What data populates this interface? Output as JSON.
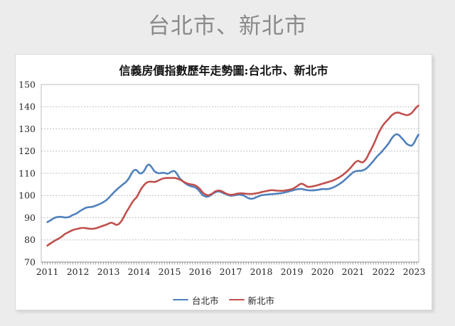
{
  "page": {
    "title": "台北市、新北市",
    "background_color": "#ececec",
    "title_color": "#8a8a8a"
  },
  "chart": {
    "title": "信義房價指數歷年走勢圖:台北市、新北市"
  },
  "chart_data": {
    "type": "line",
    "title": "信義房價指數歷年走勢圖:台北市、新北市",
    "xlabel": "",
    "ylabel": "",
    "x_tick_labels": [
      2011,
      2012,
      2013,
      2014,
      2015,
      2016,
      2017,
      2018,
      2019,
      2020,
      2021,
      2022,
      2023
    ],
    "y_ticks": [
      70,
      80,
      90,
      100,
      110,
      120,
      130,
      140,
      150
    ],
    "ylim": [
      70,
      150
    ],
    "x_range": [
      2010.8,
      2023.15
    ],
    "grid": "horizontal-dashed",
    "minor_x_ticks": "monthly",
    "legend_position": "bottom-center",
    "gridline_color": "#bfbfbf",
    "axis_color": "#8c8c8c",
    "series": [
      {
        "name": "台北市",
        "color": "#4F81BD",
        "points": [
          [
            2011.0,
            88.0
          ],
          [
            2011.08,
            88.6
          ],
          [
            2011.17,
            89.4
          ],
          [
            2011.25,
            90.0
          ],
          [
            2011.33,
            90.3
          ],
          [
            2011.42,
            90.4
          ],
          [
            2011.5,
            90.3
          ],
          [
            2011.58,
            90.1
          ],
          [
            2011.67,
            90.2
          ],
          [
            2011.75,
            90.6
          ],
          [
            2011.83,
            91.2
          ],
          [
            2011.92,
            91.7
          ],
          [
            2012.0,
            92.3
          ],
          [
            2012.08,
            93.1
          ],
          [
            2012.17,
            93.8
          ],
          [
            2012.25,
            94.4
          ],
          [
            2012.33,
            94.7
          ],
          [
            2012.42,
            94.8
          ],
          [
            2012.5,
            95.0
          ],
          [
            2012.58,
            95.4
          ],
          [
            2012.67,
            95.9
          ],
          [
            2012.75,
            96.4
          ],
          [
            2012.83,
            97.0
          ],
          [
            2012.92,
            97.8
          ],
          [
            2013.0,
            98.8
          ],
          [
            2013.08,
            100.0
          ],
          [
            2013.17,
            101.3
          ],
          [
            2013.25,
            102.4
          ],
          [
            2013.33,
            103.4
          ],
          [
            2013.42,
            104.4
          ],
          [
            2013.5,
            105.3
          ],
          [
            2013.58,
            106.2
          ],
          [
            2013.67,
            107.8
          ],
          [
            2013.75,
            109.8
          ],
          [
            2013.83,
            111.3
          ],
          [
            2013.92,
            111.4
          ],
          [
            2014.0,
            110.2
          ],
          [
            2014.08,
            110.0
          ],
          [
            2014.17,
            111.2
          ],
          [
            2014.25,
            113.2
          ],
          [
            2014.33,
            113.9
          ],
          [
            2014.42,
            112.6
          ],
          [
            2014.5,
            111.0
          ],
          [
            2014.58,
            110.3
          ],
          [
            2014.67,
            110.0
          ],
          [
            2014.75,
            110.2
          ],
          [
            2014.83,
            110.2
          ],
          [
            2014.92,
            109.8
          ],
          [
            2015.0,
            110.2
          ],
          [
            2015.08,
            110.9
          ],
          [
            2015.17,
            110.9
          ],
          [
            2015.25,
            109.5
          ],
          [
            2015.33,
            107.8
          ],
          [
            2015.42,
            106.6
          ],
          [
            2015.5,
            105.6
          ],
          [
            2015.58,
            104.9
          ],
          [
            2015.67,
            104.3
          ],
          [
            2015.75,
            104.0
          ],
          [
            2015.83,
            103.7
          ],
          [
            2015.92,
            102.8
          ],
          [
            2016.0,
            101.5
          ],
          [
            2016.08,
            100.2
          ],
          [
            2016.17,
            99.6
          ],
          [
            2016.25,
            99.5
          ],
          [
            2016.33,
            100.0
          ],
          [
            2016.42,
            100.9
          ],
          [
            2016.5,
            101.5
          ],
          [
            2016.58,
            101.8
          ],
          [
            2016.67,
            101.6
          ],
          [
            2016.75,
            101.1
          ],
          [
            2016.83,
            100.7
          ],
          [
            2016.92,
            100.2
          ],
          [
            2017.0,
            99.9
          ],
          [
            2017.08,
            100.0
          ],
          [
            2017.17,
            100.2
          ],
          [
            2017.25,
            100.4
          ],
          [
            2017.33,
            100.3
          ],
          [
            2017.42,
            100.0
          ],
          [
            2017.5,
            99.4
          ],
          [
            2017.58,
            98.8
          ],
          [
            2017.67,
            98.5
          ],
          [
            2017.75,
            98.7
          ],
          [
            2017.83,
            99.2
          ],
          [
            2017.92,
            99.7
          ],
          [
            2018.0,
            100.1
          ],
          [
            2018.17,
            100.4
          ],
          [
            2018.33,
            100.6
          ],
          [
            2018.5,
            100.8
          ],
          [
            2018.67,
            101.1
          ],
          [
            2018.83,
            101.6
          ],
          [
            2019.0,
            102.2
          ],
          [
            2019.17,
            102.8
          ],
          [
            2019.33,
            102.9
          ],
          [
            2019.5,
            102.4
          ],
          [
            2019.67,
            102.3
          ],
          [
            2019.83,
            102.5
          ],
          [
            2020.0,
            102.9
          ],
          [
            2020.17,
            102.9
          ],
          [
            2020.33,
            103.5
          ],
          [
            2020.5,
            104.7
          ],
          [
            2020.67,
            106.3
          ],
          [
            2020.83,
            108.3
          ],
          [
            2020.92,
            109.4
          ],
          [
            2021.0,
            110.4
          ],
          [
            2021.08,
            110.9
          ],
          [
            2021.17,
            111.1
          ],
          [
            2021.25,
            111.1
          ],
          [
            2021.33,
            111.4
          ],
          [
            2021.42,
            112.0
          ],
          [
            2021.5,
            113.0
          ],
          [
            2021.58,
            114.2
          ],
          [
            2021.67,
            115.6
          ],
          [
            2021.75,
            117.0
          ],
          [
            2021.83,
            118.2
          ],
          [
            2021.92,
            119.4
          ],
          [
            2022.0,
            120.7
          ],
          [
            2022.08,
            122.0
          ],
          [
            2022.17,
            123.6
          ],
          [
            2022.25,
            125.4
          ],
          [
            2022.33,
            126.8
          ],
          [
            2022.42,
            127.6
          ],
          [
            2022.5,
            127.2
          ],
          [
            2022.58,
            126.1
          ],
          [
            2022.67,
            124.7
          ],
          [
            2022.75,
            123.4
          ],
          [
            2022.83,
            122.7
          ],
          [
            2022.92,
            122.5
          ],
          [
            2023.0,
            123.8
          ],
          [
            2023.08,
            126.0
          ],
          [
            2023.14,
            127.4
          ]
        ]
      },
      {
        "name": "新北市",
        "color": "#C0504D",
        "points": [
          [
            2011.0,
            77.4
          ],
          [
            2011.08,
            78.2
          ],
          [
            2011.17,
            79.0
          ],
          [
            2011.25,
            79.7
          ],
          [
            2011.33,
            80.3
          ],
          [
            2011.42,
            81.0
          ],
          [
            2011.5,
            81.8
          ],
          [
            2011.58,
            82.7
          ],
          [
            2011.67,
            83.3
          ],
          [
            2011.75,
            83.9
          ],
          [
            2011.83,
            84.4
          ],
          [
            2011.92,
            84.8
          ],
          [
            2012.0,
            85.0
          ],
          [
            2012.08,
            85.3
          ],
          [
            2012.17,
            85.4
          ],
          [
            2012.25,
            85.3
          ],
          [
            2012.33,
            85.1
          ],
          [
            2012.42,
            85.0
          ],
          [
            2012.5,
            85.0
          ],
          [
            2012.58,
            85.2
          ],
          [
            2012.67,
            85.6
          ],
          [
            2012.75,
            86.0
          ],
          [
            2012.83,
            86.4
          ],
          [
            2012.92,
            86.8
          ],
          [
            2013.0,
            87.3
          ],
          [
            2013.08,
            87.7
          ],
          [
            2013.17,
            87.4
          ],
          [
            2013.25,
            86.8
          ],
          [
            2013.33,
            87.1
          ],
          [
            2013.42,
            88.4
          ],
          [
            2013.5,
            90.3
          ],
          [
            2013.58,
            92.4
          ],
          [
            2013.67,
            94.4
          ],
          [
            2013.75,
            96.3
          ],
          [
            2013.83,
            97.9
          ],
          [
            2013.92,
            99.2
          ],
          [
            2014.0,
            101.2
          ],
          [
            2014.08,
            103.2
          ],
          [
            2014.17,
            104.8
          ],
          [
            2014.25,
            105.8
          ],
          [
            2014.33,
            106.2
          ],
          [
            2014.42,
            106.2
          ],
          [
            2014.5,
            106.1
          ],
          [
            2014.58,
            106.4
          ],
          [
            2014.67,
            107.0
          ],
          [
            2014.75,
            107.5
          ],
          [
            2014.83,
            107.8
          ],
          [
            2014.92,
            107.9
          ],
          [
            2015.0,
            107.9
          ],
          [
            2015.08,
            107.9
          ],
          [
            2015.17,
            107.9
          ],
          [
            2015.25,
            107.6
          ],
          [
            2015.33,
            107.2
          ],
          [
            2015.42,
            106.5
          ],
          [
            2015.5,
            105.9
          ],
          [
            2015.58,
            105.4
          ],
          [
            2015.67,
            105.1
          ],
          [
            2015.75,
            104.9
          ],
          [
            2015.83,
            104.6
          ],
          [
            2015.92,
            103.8
          ],
          [
            2016.0,
            102.8
          ],
          [
            2016.08,
            101.4
          ],
          [
            2016.17,
            100.5
          ],
          [
            2016.25,
            100.1
          ],
          [
            2016.33,
            100.4
          ],
          [
            2016.42,
            101.1
          ],
          [
            2016.5,
            101.9
          ],
          [
            2016.58,
            102.2
          ],
          [
            2016.67,
            102.1
          ],
          [
            2016.75,
            101.6
          ],
          [
            2016.83,
            101.0
          ],
          [
            2016.92,
            100.5
          ],
          [
            2017.0,
            100.3
          ],
          [
            2017.08,
            100.4
          ],
          [
            2017.17,
            100.7
          ],
          [
            2017.25,
            100.9
          ],
          [
            2017.33,
            101.0
          ],
          [
            2017.42,
            100.9
          ],
          [
            2017.5,
            100.8
          ],
          [
            2017.58,
            100.7
          ],
          [
            2017.67,
            100.7
          ],
          [
            2017.75,
            100.8
          ],
          [
            2017.83,
            101.0
          ],
          [
            2017.92,
            101.2
          ],
          [
            2018.0,
            101.5
          ],
          [
            2018.17,
            102.0
          ],
          [
            2018.33,
            102.4
          ],
          [
            2018.5,
            102.2
          ],
          [
            2018.67,
            102.1
          ],
          [
            2018.83,
            102.4
          ],
          [
            2019.0,
            102.9
          ],
          [
            2019.08,
            103.4
          ],
          [
            2019.17,
            104.2
          ],
          [
            2019.25,
            105.0
          ],
          [
            2019.33,
            105.3
          ],
          [
            2019.42,
            104.7
          ],
          [
            2019.5,
            104.0
          ],
          [
            2019.58,
            103.9
          ],
          [
            2019.67,
            104.1
          ],
          [
            2019.83,
            104.6
          ],
          [
            2020.0,
            105.3
          ],
          [
            2020.17,
            106.0
          ],
          [
            2020.33,
            106.7
          ],
          [
            2020.5,
            107.8
          ],
          [
            2020.67,
            109.3
          ],
          [
            2020.83,
            111.2
          ],
          [
            2020.92,
            112.5
          ],
          [
            2021.0,
            113.8
          ],
          [
            2021.08,
            115.0
          ],
          [
            2021.17,
            115.6
          ],
          [
            2021.25,
            115.1
          ],
          [
            2021.33,
            115.0
          ],
          [
            2021.42,
            116.3
          ],
          [
            2021.5,
            118.3
          ],
          [
            2021.58,
            120.5
          ],
          [
            2021.67,
            122.9
          ],
          [
            2021.75,
            125.4
          ],
          [
            2021.83,
            128.0
          ],
          [
            2021.92,
            130.3
          ],
          [
            2022.0,
            132.0
          ],
          [
            2022.08,
            133.3
          ],
          [
            2022.17,
            134.6
          ],
          [
            2022.25,
            135.9
          ],
          [
            2022.33,
            136.8
          ],
          [
            2022.42,
            137.3
          ],
          [
            2022.5,
            137.3
          ],
          [
            2022.58,
            136.9
          ],
          [
            2022.67,
            136.5
          ],
          [
            2022.75,
            136.2
          ],
          [
            2022.83,
            136.4
          ],
          [
            2022.92,
            137.2
          ],
          [
            2023.0,
            138.5
          ],
          [
            2023.08,
            139.8
          ],
          [
            2023.14,
            140.5
          ]
        ]
      }
    ]
  }
}
